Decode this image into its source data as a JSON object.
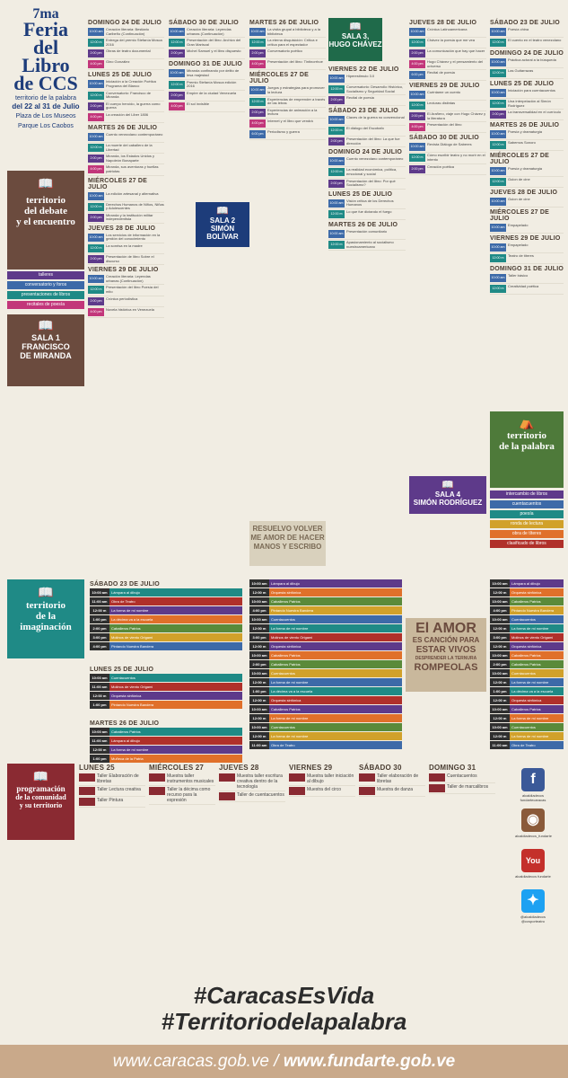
{
  "brand": {
    "edition": "7ma",
    "title1": "Feria",
    "title2": "del Libro",
    "title3": "de CCS",
    "subtitle": "territorio de la palabra",
    "dates": "del 22 al 31 de Julio",
    "place1": "Plaza de Los Museos",
    "place2": "Parque Los Caobos"
  },
  "colors": {
    "navy": "#1d3c7a",
    "blue": "#3d6aa8",
    "teal": "#1f8a86",
    "brown": "#6b4b3e",
    "purple": "#5e3a8a",
    "green": "#5a8a3a",
    "orange": "#e0702a",
    "red": "#b0302a",
    "pink": "#c2367a",
    "gold": "#d1a12a"
  },
  "sala_debate": {
    "line1": "territorio",
    "line2": "del debate",
    "line3": "y el encuentro",
    "legend": [
      "talleres",
      "conversatorio y foros",
      "presentaciones de libros",
      "recitales de poesía"
    ]
  },
  "sala1": {
    "label": "SALA 1",
    "name1": "FRANCISCO",
    "name2": "DE MIRANDA"
  },
  "sala2": {
    "label": "SALA 2",
    "name": "SIMÓN BOLÍVAR"
  },
  "sala3": {
    "label": "SALA 3,",
    "name": "HUGO CHÁVEZ"
  },
  "sala4": {
    "label": "SALA 4",
    "name": "SIMÓN RODRÍGUEZ"
  },
  "palabra": {
    "line1": "territorio",
    "line2": "de la palabra",
    "legend": [
      "intercambio de libros",
      "cuentacuentos",
      "poesía",
      "ronda de lectura",
      "obra de títeres",
      "clasificado de libros"
    ]
  },
  "imaginacion": {
    "line1": "territorio",
    "line2": "de la",
    "line3": "imaginación"
  },
  "programacion": {
    "line1": "programación",
    "line2": "de la comunidad",
    "line3": "y su territorio"
  },
  "col1": [
    {
      "day": "DOMINGO 24 DE JULIO",
      "events": [
        {
          "t": "10:00 am",
          "d": "Creación literaria: Bestiario Caribeño (Continuación)"
        },
        {
          "t": "12:00 m",
          "d": "Entrega del premio Stefanía Mosca 2016"
        },
        {
          "t": "2:00 pm",
          "d": "Obras de teatro documental"
        },
        {
          "t": "4:00 pm",
          "d": "Gino González"
        }
      ]
    },
    {
      "day": "LUNES 25 DE JULIO",
      "events": [
        {
          "t": "10:00 am",
          "d": "Iniciación a la Creación Poética Programa del Blanco"
        },
        {
          "t": "12:00 m",
          "d": "Conversatorio: Francisco de Miranda"
        },
        {
          "t": "2:00 pm",
          "d": "El cuerpo heroído, la guerra como guerra"
        },
        {
          "t": "4:00 pm",
          "d": "La creación del Liber 1806"
        }
      ]
    },
    {
      "day": "MARTES 26 DE JULIO",
      "events": [
        {
          "t": "10:00 am",
          "d": "Cuento venezolano contemporáneo"
        },
        {
          "t": "12:00 m",
          "d": "La muerte del caballero de la Libertad"
        },
        {
          "t": "2:00 pm",
          "d": "Miranda, los Estados Unidos y Napoleón Bonaparte"
        },
        {
          "t": "4:00 pm",
          "d": "Miranda, sus aventuras y huellas patriotas"
        }
      ]
    },
    {
      "day": "MIÉRCOLES 27 DE JULIO",
      "events": [
        {
          "t": "10:00 am",
          "d": "La edición artesanal y alternativa"
        },
        {
          "t": "12:00 m",
          "d": "Derechos Humanos de Niños, Niñas y Adolescentes"
        },
        {
          "t": "2:00 pm",
          "d": "Miranda y la institución militar independentista"
        }
      ]
    },
    {
      "day": "JUEVES 28 DE JULIO",
      "events": [
        {
          "t": "10:00 am",
          "d": "Los servicios de información en la gestión del conocimiento"
        },
        {
          "t": "12:00 m",
          "d": "La sonrisa en la madre"
        },
        {
          "t": "2:00 pm",
          "d": "Presentación de libro Sobre el discurso"
        }
      ]
    },
    {
      "day": "VIERNES 29 DE JULIO",
      "events": [
        {
          "t": "10:00 am",
          "d": "Creación literaria: Leyendas urbanas (Continuación)"
        },
        {
          "t": "12:00 m",
          "d": "Presentación del libro Poesía del mito"
        },
        {
          "t": "2:00 pm",
          "d": "Crónica periodística"
        },
        {
          "t": "4:00 pm",
          "d": "Novela histórica en Venezuela"
        }
      ]
    }
  ],
  "col2": [
    {
      "day": "SÁBADO 30 DE JULIO",
      "events": [
        {
          "t": "10:00 am",
          "d": "Creación literaria: Leyendas urbanas (Continuación)"
        },
        {
          "t": "12:00 m",
          "d": "Presentación del libro: Archivo del Gran Mariscal"
        },
        {
          "t": "2:00 pm",
          "d": "Michel Samuel y el libro dispuesto"
        }
      ]
    },
    {
      "day": "DOMINGO 31 DE JULIO",
      "events": [
        {
          "t": "10:00 am",
          "d": "Miranda confinando por delito de lesa majestad"
        },
        {
          "t": "12:00 m",
          "d": "Premio Stefanía Mosca edición 2016"
        },
        {
          "t": "2:00 pm",
          "d": "Empire de la ciudad Venezuela"
        },
        {
          "t": "4:00 pm",
          "d": "El sol invisible"
        }
      ]
    }
  ],
  "col3": [
    {
      "day": "MARTES 26 DE JULIO",
      "events": [
        {
          "t": "10:00 am",
          "d": "La visita grupal a biblioteca y a la biblioteca"
        },
        {
          "t": "12:00 m",
          "d": "La eterna disquisición: Crítica e crítica para el espectador"
        },
        {
          "t": "2:00 pm",
          "d": "Conversatorio poético"
        },
        {
          "t": "4:00 pm",
          "d": "Presentación del libro: Tintinorrhoe"
        }
      ]
    },
    {
      "day": "MIÉRCOLES 27 DE JULIO",
      "events": [
        {
          "t": "10:00 am",
          "d": "Juegos y estrategias para promover la lectura"
        },
        {
          "t": "12:00 m",
          "d": "Experiencias de emprender a través de las letras"
        },
        {
          "t": "2:00 pm",
          "d": "Experiencias de animación a la lectura"
        },
        {
          "t": "4:00 pm",
          "d": "Internet y el libro que vendrá"
        },
        {
          "t": "6:00 pm",
          "d": "Periodismo y guerra"
        }
      ]
    }
  ],
  "col4": [
    {
      "day": "VIERNES 22 DE JULIO",
      "events": [
        {
          "t": "10:00 am",
          "d": "Hiperestimulo 3.0"
        },
        {
          "t": "12:00 m",
          "d": "Conversatorio: Desarrollo Histórico, Socialismo y Seguridad Social"
        },
        {
          "t": "2:00 pm",
          "d": "Recital de poesía"
        }
      ]
    },
    {
      "day": "SÁBADO 23 DE JULIO",
      "events": [
        {
          "t": "10:00 am",
          "d": "Claves de la guerra no convencional"
        },
        {
          "t": "12:00 m",
          "d": "El diálogo del Escobafo"
        },
        {
          "t": "2:00 pm",
          "d": "Presentación del libro: La que fue dirección"
        }
      ]
    },
    {
      "day": "DOMINGO 24 DE JULIO",
      "events": [
        {
          "t": "10:00 am",
          "d": "Cuento venezolano contemporáneo"
        },
        {
          "t": "12:00 m",
          "d": "La realidad económica, política, emocional y social"
        },
        {
          "t": "2:00 pm",
          "d": "Presentación del libro: Por qué Socialismo?"
        }
      ]
    },
    {
      "day": "LUNES 25 DE JULIO",
      "events": [
        {
          "t": "10:00 am",
          "d": "Visión crítica de los Derechos Humanos"
        },
        {
          "t": "12:00 m",
          "d": "Lo que fue dictando el fuego"
        }
      ]
    },
    {
      "day": "MARTES 26 DE JULIO",
      "events": [
        {
          "t": "10:00 am",
          "d": "Presentación comunitario"
        },
        {
          "t": "12:00 m",
          "d": "Apasionamiento al socialismo nuestroamericano"
        }
      ]
    }
  ],
  "col5": [
    {
      "day": "JUEVES 28 DE JULIO",
      "events": [
        {
          "t": "10:00 am",
          "d": "Crónica Latinoamericana"
        },
        {
          "t": "12:00 m",
          "d": "Chávez la poesía que me vea"
        },
        {
          "t": "2:00 pm",
          "d": "La comunicación que hay que hacer"
        },
        {
          "t": "4:00 pm",
          "d": "Hugo Chávez y el pensamiento del universo"
        },
        {
          "t": "6:00 pm",
          "d": "Recital de poesía"
        }
      ]
    },
    {
      "day": "VIERNES 29 DE JULIO",
      "events": [
        {
          "t": "10:00 am",
          "d": "Cuéntame un cuento"
        },
        {
          "t": "12:00 m",
          "d": "Lecturas distintas"
        },
        {
          "t": "2:00 pm",
          "d": "El Arañero, viaje con Hugo Chávez y la literatura"
        },
        {
          "t": "4:00 pm",
          "d": "Presentación del libro"
        }
      ]
    },
    {
      "day": "SÁBADO 30 DE JULIO",
      "events": [
        {
          "t": "10:00 am",
          "d": "Revista Diálogo de Saberes"
        },
        {
          "t": "12:00 m",
          "d": "Cómo escribir teatro y no morir en el intento"
        },
        {
          "t": "2:00 pm",
          "d": "Creación poética"
        }
      ]
    }
  ],
  "col6": [
    {
      "day": "SÁBADO 23 DE JULIO",
      "events": [
        {
          "t": "10:00 am",
          "d": "Poesía china"
        },
        {
          "t": "12:00 m",
          "d": "El cuento en el teatro venezolano"
        }
      ]
    },
    {
      "day": "DOMINGO 24 DE JULIO",
      "events": [
        {
          "t": "10:00 am",
          "d": "Práctica actoral a la búsqueda"
        },
        {
          "t": "12:00 m",
          "d": "Las Guitarrazas"
        }
      ]
    },
    {
      "day": "LUNES 25 DE JULIO",
      "events": [
        {
          "t": "10:00 am",
          "d": "Iniciación para cuentacuentos"
        },
        {
          "t": "12:00 m",
          "d": "Una interpelación al Simón Rodríguez"
        },
        {
          "t": "2:00 pm",
          "d": "La transversalidad en el currículo"
        }
      ]
    },
    {
      "day": "MARTES 26 DE JULIO",
      "events": [
        {
          "t": "10:00 am",
          "d": "Poesía y dramaturgia"
        },
        {
          "t": "12:00 m",
          "d": "Sabemos Sonoro"
        }
      ]
    },
    {
      "day": "MIÉRCOLES 27 DE JULIO",
      "events": [
        {
          "t": "10:00 am",
          "d": "Poesía y dramaturgia"
        },
        {
          "t": "12:00 m",
          "d": "Guion de cine"
        }
      ]
    },
    {
      "day": "JUEVES 28 DE JULIO",
      "events": [
        {
          "t": "10:00 am",
          "d": "Guion de cine"
        }
      ]
    },
    {
      "day": "MIÉRCOLES 27 DE JULIO",
      "events": [
        {
          "t": "10:00 am",
          "d": "Empapelado"
        }
      ]
    },
    {
      "day": "VIERNES 29 DE JULIO",
      "events": [
        {
          "t": "10:00 am",
          "d": "Empapelado"
        },
        {
          "t": "12:00 m",
          "d": "Teatro de títeres"
        }
      ]
    },
    {
      "day": "DOMINGO 31 DE JULIO",
      "events": [
        {
          "t": "10:00 am",
          "d": "Taller básico"
        },
        {
          "t": "12:00 m",
          "d": "Creatividad poética"
        }
      ]
    }
  ],
  "imag_lanes": [
    {
      "day": "SÁBADO 23 DE JULIO",
      "slots": [
        {
          "t": "10:00 am",
          "n": "Lámpara al dibujo"
        },
        {
          "t": "11:00 am",
          "n": "Obra de Teatro"
        },
        {
          "t": "12:00 m",
          "n": "La forma de mi nombre"
        },
        {
          "t": "1:00 pm",
          "n": "La décima va a la escuela"
        },
        {
          "t": "2:00 pm",
          "n": "Caballeros Patrios"
        },
        {
          "t": "3:00 pm",
          "n": "Molinos de viento Origami"
        },
        {
          "t": "4:00 pm",
          "n": "Pintando Nuestra Bandera"
        }
      ]
    },
    {
      "day": "LUNES 25 DE JULIO",
      "slots": [
        {
          "t": "10:00 am",
          "n": "Cuentacuentos"
        },
        {
          "t": "11:00 am",
          "n": "Molinos de viento Origami"
        },
        {
          "t": "12:00 m",
          "n": "Orquesta sinfónica"
        },
        {
          "t": "1:00 pm",
          "n": "Pintando Nuestra Bandera"
        }
      ]
    },
    {
      "day": "MARTES 26 DE JULIO",
      "slots": [
        {
          "t": "10:00 am",
          "n": "Caballeros Patrios"
        },
        {
          "t": "11:00 am",
          "n": "Lámpara al dibujo"
        },
        {
          "t": "12:00 m",
          "n": "La forma de mi nombre"
        },
        {
          "t": "1:00 pm",
          "n": "Muñeca de la Patria"
        }
      ]
    }
  ],
  "amor": {
    "l1": "El AMOR",
    "l2": "ES CANCIÓN PARA",
    "l3": "ESTAR VIVOS",
    "l4": "DESPRENDER LA TERNURA",
    "l5": "ROMPEOLAS"
  },
  "hashtags": {
    "h1": "#CaracasEsVida",
    "h2": "#Territoriodelapalabra"
  },
  "footer": {
    "url1": "www.caracas.gob.ve",
    "sep": " / ",
    "url2": "www.fundarte.gob.ve"
  },
  "social": {
    "fb": "alcaldiadeccs fundartecaracas",
    "ig": "alcaldiadeccs_fundarte",
    "yt": "alcaldiadeccs fundarte",
    "tw": "@alcaldiadeccs @ccsporteatro"
  },
  "prog_days": [
    {
      "day": "LUNES 25",
      "lines": [
        "Taller Elaboración de libretas",
        "Taller Lectura creativa",
        "Taller Pintura"
      ]
    },
    {
      "day": "MIÉRCOLES 27",
      "lines": [
        "Muestra taller instrumentos musicales",
        "Taller la décima como recurso para la expresión"
      ]
    },
    {
      "day": "JUEVES 28",
      "lines": [
        "Muestra taller escritura creativa dentro de la tecnología",
        "Taller de cuentacuentos"
      ]
    },
    {
      "day": "VIERNES 29",
      "lines": [
        "Muestra taller iniciación al dibujo",
        "Muestra del circo"
      ]
    },
    {
      "day": "SÁBADO 30",
      "lines": [
        "Taller elaboración de libretas",
        "Muestra de danza"
      ]
    },
    {
      "day": "DOMINGO 31",
      "lines": [
        "Cuentacuentos",
        "Taller de marcalibros"
      ]
    }
  ]
}
